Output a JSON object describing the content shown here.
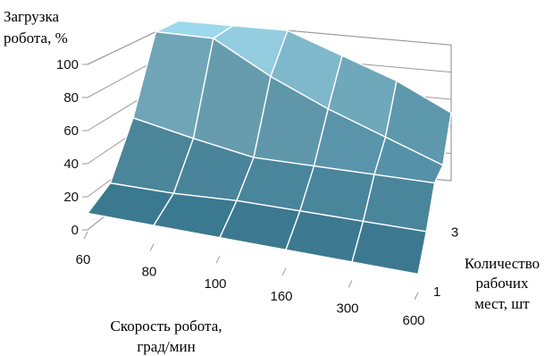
{
  "chart_data": {
    "type": "surface",
    "title": "",
    "zlabel_lines": [
      "Загрузка",
      "робота, %"
    ],
    "xlabel_lines": [
      "Скорость робота,",
      "град/мин"
    ],
    "ylabel_lines": [
      "Количество",
      "рабочих",
      "мест, шт"
    ],
    "x_categories": [
      "60",
      "80",
      "100",
      "160",
      "300",
      "600"
    ],
    "y_ticks": [
      "1",
      "3"
    ],
    "z_ticks": [
      "0",
      "20",
      "40",
      "60",
      "80",
      "100"
    ],
    "zlim": [
      0,
      100
    ],
    "rows": 5,
    "values": [
      [
        10,
        10,
        10,
        10,
        10,
        10
      ],
      [
        18,
        18,
        20,
        20,
        20,
        20
      ],
      [
        50,
        42,
        35,
        35,
        35,
        35
      ],
      [
        100,
        100,
        78,
        60,
        45,
        30
      ],
      [
        100,
        100,
        100,
        85,
        70,
        50
      ]
    ],
    "colors": {
      "surface_low": "#2c6c84",
      "surface_high": "#9ed8ec",
      "edges": "#ffffff"
    }
  }
}
